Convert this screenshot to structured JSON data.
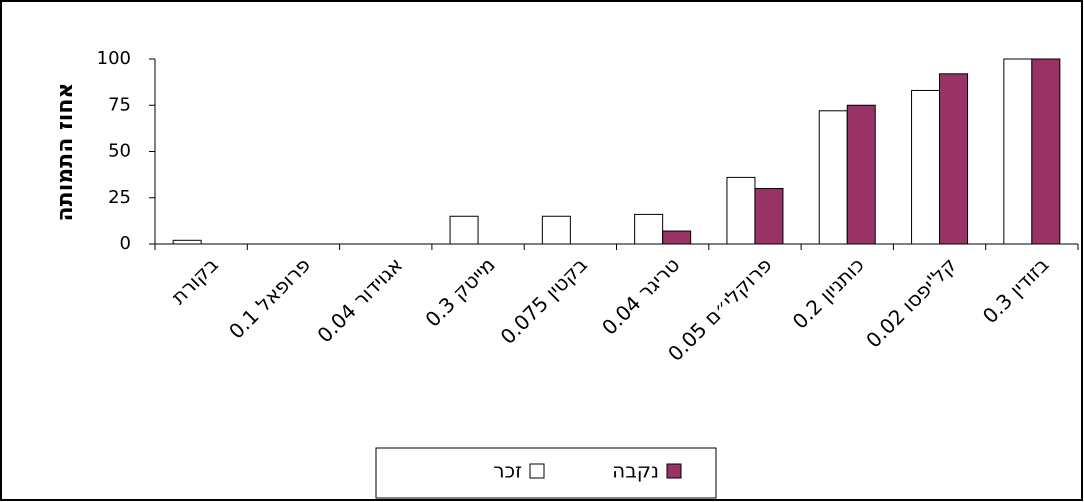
{
  "chart_data": {
    "type": "bar",
    "y_label": "אחוז התמותה",
    "categories": [
      "בקורת",
      "פרופאל 0.1",
      "אגוידור 0.04",
      "מייטק 0.3",
      "בקטין 0.075",
      "טריגר 0.04",
      "פרוקלי״ם 0.05",
      "כותניון 0.2",
      "קל'יפסו 0.02",
      "בזודין 0.3"
    ],
    "series": [
      {
        "name": "זכר",
        "color": "#ffffff",
        "values": [
          2,
          0,
          0,
          15,
          15,
          16,
          36,
          72,
          83,
          100
        ]
      },
      {
        "name": "נקבה",
        "color": "#993366",
        "values": [
          0,
          0,
          0,
          0,
          0,
          7,
          30,
          75,
          92,
          100
        ]
      }
    ],
    "ylim": [
      0,
      100
    ],
    "yticks": [
      0,
      25,
      50,
      75,
      100
    ],
    "grid": false
  }
}
